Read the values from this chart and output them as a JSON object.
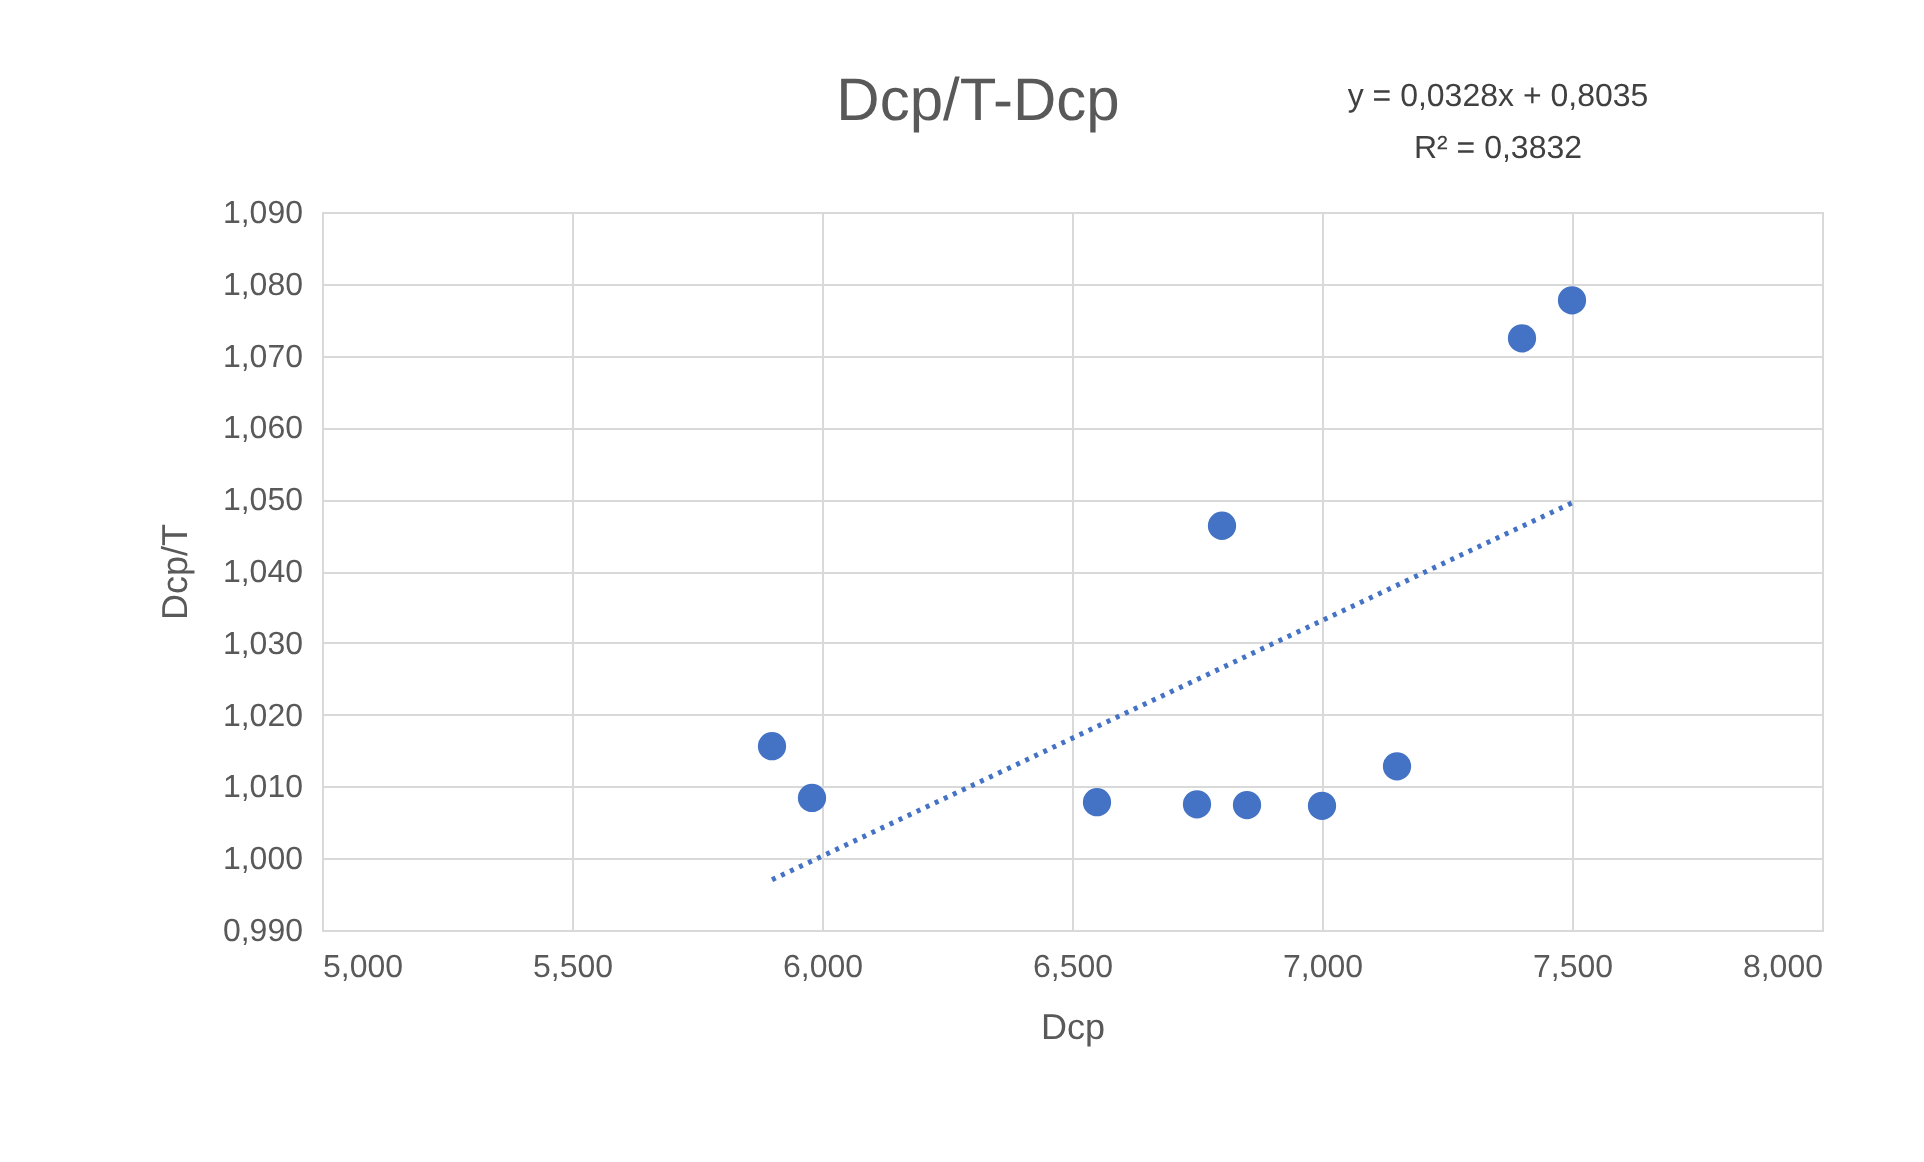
{
  "chart_data": {
    "type": "scatter",
    "title": "Dcp/T-Dcp",
    "xlabel": "Dcp",
    "ylabel": "Dcp/T",
    "annotations": [
      "y = 0,0328x + 0,8035",
      "R² = 0,3832"
    ],
    "series": [
      {
        "marker": "circle",
        "color": "#4472c4",
        "x": [
          5.9,
          5.98,
          6.55,
          6.75,
          6.85,
          7.0,
          7.15,
          6.8,
          7.4,
          7.5
        ],
        "values": [
          1.0156,
          1.0084,
          1.0078,
          1.0075,
          1.0074,
          1.0073,
          1.0128,
          1.0463,
          1.0724,
          1.0777
        ]
      },
      {
        "type": "line",
        "color": "#4472c4",
        "line_style": "dotted",
        "marker": "none",
        "x": [
          5.9,
          7.5
        ],
        "values": [
          0.997,
          1.0495
        ]
      }
    ],
    "xlim": [
      5,
      8
    ],
    "ylim": [
      0.99,
      1.09
    ],
    "xticks": [
      {
        "value": 5,
        "label": "5,000"
      },
      {
        "value": 5.5,
        "label": "5,500"
      },
      {
        "value": 6,
        "label": "6,000"
      },
      {
        "value": 6.5,
        "label": "6,500"
      },
      {
        "value": 7,
        "label": "7,000"
      },
      {
        "value": 7.5,
        "label": "7,500"
      },
      {
        "value": 8,
        "label": "8,000"
      }
    ],
    "yticks": [
      {
        "value": 0.99,
        "label": "0,990"
      },
      {
        "value": 1.0,
        "label": "1,000"
      },
      {
        "value": 1.01,
        "label": "1,010"
      },
      {
        "value": 1.02,
        "label": "1,020"
      },
      {
        "value": 1.03,
        "label": "1,030"
      },
      {
        "value": 1.04,
        "label": "1,040"
      },
      {
        "value": 1.05,
        "label": "1,050"
      },
      {
        "value": 1.06,
        "label": "1,060"
      },
      {
        "value": 1.07,
        "label": "1,070"
      },
      {
        "value": 1.08,
        "label": "1,080"
      },
      {
        "value": 1.09,
        "label": "1,090"
      }
    ],
    "grid": true,
    "legend": false
  }
}
